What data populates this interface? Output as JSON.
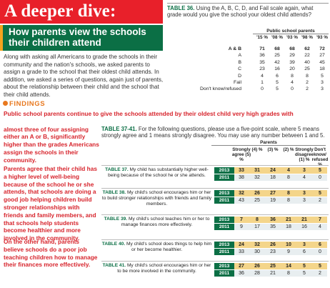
{
  "banner": {
    "title": "A deeper dive:"
  },
  "headline": "How parents view the schools their children attend",
  "intro": "Along with asking all Americans to grade the schools in their community and the nation's schools, we asked parents to assign a grade to the school that their oldest child attends. In addition, we asked a series of questions, again just of parents, about the relationship between their child and the school that their child attends.",
  "findings": {
    "label": "FINDINGS",
    "f1_line": "Public school parents continue to give the schools attended by their oldest child very high grades with",
    "f1_rest": "almost three of four assigning either an A or B, significantly higher than the grades Americans assign the schools in their community.",
    "f2": "Parents agree that their child has a higher level of well-being because of the school he or she attends, that schools are doing a good job helping children build stronger relationships with friends and family members, and that schools help students become healthier and more involved in the community.",
    "f3": "On the other hand, parents believe schools do a poor job teaching children how to manage their finances more effectively."
  },
  "table36": {
    "label": "TABLE 36.",
    "question": "Using the A, B, C, D, and Fail scale again, what grade would you give the school your oldest child attends?",
    "group_header": "Public school parents",
    "years": [
      "'15 %",
      "'08 %",
      "'03 %",
      "'98 %",
      "'93 %"
    ],
    "rows": [
      {
        "label": "A & B",
        "values": [
          "71",
          "68",
          "68",
          "62",
          "72"
        ],
        "bold": true
      },
      {
        "label": "A",
        "values": [
          "36",
          "25",
          "29",
          "22",
          "27"
        ],
        "bold": false
      },
      {
        "label": "B",
        "values": [
          "35",
          "42",
          "39",
          "40",
          "45"
        ],
        "bold": false
      },
      {
        "label": "C",
        "values": [
          "23",
          "16",
          "20",
          "25",
          "18"
        ],
        "bold": false
      },
      {
        "label": "D",
        "values": [
          "4",
          "6",
          "8",
          "8",
          "5"
        ],
        "bold": false
      },
      {
        "label": "Fail",
        "values": [
          "1",
          "5",
          "4",
          "2",
          "3"
        ],
        "bold": false
      },
      {
        "label": "Don't know/refused",
        "values": [
          "0",
          "5",
          "0",
          "2",
          "3"
        ],
        "bold": false
      }
    ]
  },
  "table37": {
    "label": "TABLE 37-41.",
    "question": "For the following questions, please use a five-point scale, where 5 means strongly agree and 1 means strongly disagree. You may use any number between 1 and 5.",
    "group_header": "Parents",
    "columns": [
      "Strongly agree (5) %",
      "(4) %",
      "(3) %",
      "(2) %",
      "Strongly disagree (1) %",
      "Don't know/ refused %"
    ],
    "blocks": [
      {
        "label": "TABLE 37.",
        "question": "My child has substantially higher well-being because of the school he or she attends.",
        "rows": [
          {
            "year": "2013",
            "values": [
              "33",
              "31",
              "24",
              "4",
              "3",
              "5"
            ]
          },
          {
            "year": "2011",
            "values": [
              "38",
              "32",
              "18",
              "8",
              "4",
              "0"
            ]
          }
        ]
      },
      {
        "label": "TABLE 38.",
        "question": "My child's school encourages him or her to build stronger relationships with friends and family members.",
        "rows": [
          {
            "year": "2013",
            "values": [
              "32",
              "26",
              "27",
              "8",
              "3",
              "5"
            ]
          },
          {
            "year": "2011",
            "values": [
              "43",
              "25",
              "19",
              "8",
              "3",
              "2"
            ]
          }
        ]
      },
      {
        "label": "TABLE 39.",
        "question": "My child's school teaches him or her to manage finances more effectively.",
        "rows": [
          {
            "year": "2013",
            "values": [
              "7",
              "8",
              "36",
              "21",
              "21",
              "7"
            ]
          },
          {
            "year": "2011",
            "values": [
              "9",
              "17",
              "35",
              "18",
              "16",
              "4"
            ]
          }
        ]
      },
      {
        "label": "TABLE 40.",
        "question": "My child's school does things to help him or her become healthier.",
        "rows": [
          {
            "year": "2013",
            "values": [
              "24",
              "32",
              "26",
              "10",
              "3",
              "6"
            ]
          },
          {
            "year": "2011",
            "values": [
              "33",
              "30",
              "23",
              "9",
              "6",
              "0"
            ]
          }
        ]
      },
      {
        "label": "TABLE 41.",
        "question": "My child's school encourages him or her to be more involved in the community.",
        "rows": [
          {
            "year": "2013",
            "values": [
              "27",
              "26",
              "25",
              "14",
              "5",
              "5"
            ]
          },
          {
            "year": "2011",
            "values": [
              "36",
              "28",
              "21",
              "8",
              "5",
              "2"
            ]
          }
        ]
      }
    ]
  },
  "colors": {
    "red": "#e8202a",
    "green": "#0b6f45",
    "orange": "#e8781e",
    "highlight": "#f4d58a"
  }
}
